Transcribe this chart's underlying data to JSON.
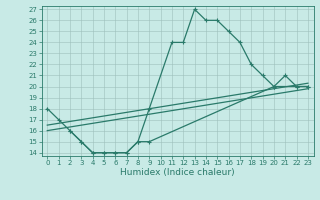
{
  "xlabel": "Humidex (Indice chaleur)",
  "line_main_x": [
    0,
    1,
    2,
    3,
    4,
    5,
    6,
    7,
    8,
    9,
    11,
    12,
    13,
    14,
    15,
    16,
    17,
    18,
    19,
    20,
    21,
    22,
    23
  ],
  "line_main_y": [
    18,
    17,
    16,
    15,
    14,
    14,
    14,
    14,
    15,
    18,
    24,
    24,
    27,
    26,
    26,
    25,
    24,
    22,
    21,
    20,
    21,
    20,
    20
  ],
  "line_lower_x": [
    2,
    3,
    4,
    5,
    6,
    7,
    8,
    9,
    20,
    22,
    23
  ],
  "line_lower_y": [
    16,
    15,
    14,
    14,
    14,
    14,
    15,
    15,
    20,
    20,
    20
  ],
  "trend1_x": [
    0,
    23
  ],
  "trend1_y": [
    16.5,
    20.3
  ],
  "trend2_x": [
    0,
    23
  ],
  "trend2_y": [
    16.0,
    19.8
  ],
  "ylim": [
    13.7,
    27.3
  ],
  "xlim": [
    -0.5,
    23.5
  ],
  "yticks": [
    14,
    15,
    16,
    17,
    18,
    19,
    20,
    21,
    22,
    23,
    24,
    25,
    26,
    27
  ],
  "xticks": [
    0,
    1,
    2,
    3,
    4,
    5,
    6,
    7,
    8,
    9,
    10,
    11,
    12,
    13,
    14,
    15,
    16,
    17,
    18,
    19,
    20,
    21,
    22,
    23
  ],
  "line_color": "#2a7a6a",
  "bg_color": "#c8eae6",
  "grid_color": "#9dbfbb",
  "tick_fontsize": 5.0,
  "label_fontsize": 6.5,
  "linewidth": 0.9,
  "markersize": 2.5,
  "markeredgewidth": 0.8
}
